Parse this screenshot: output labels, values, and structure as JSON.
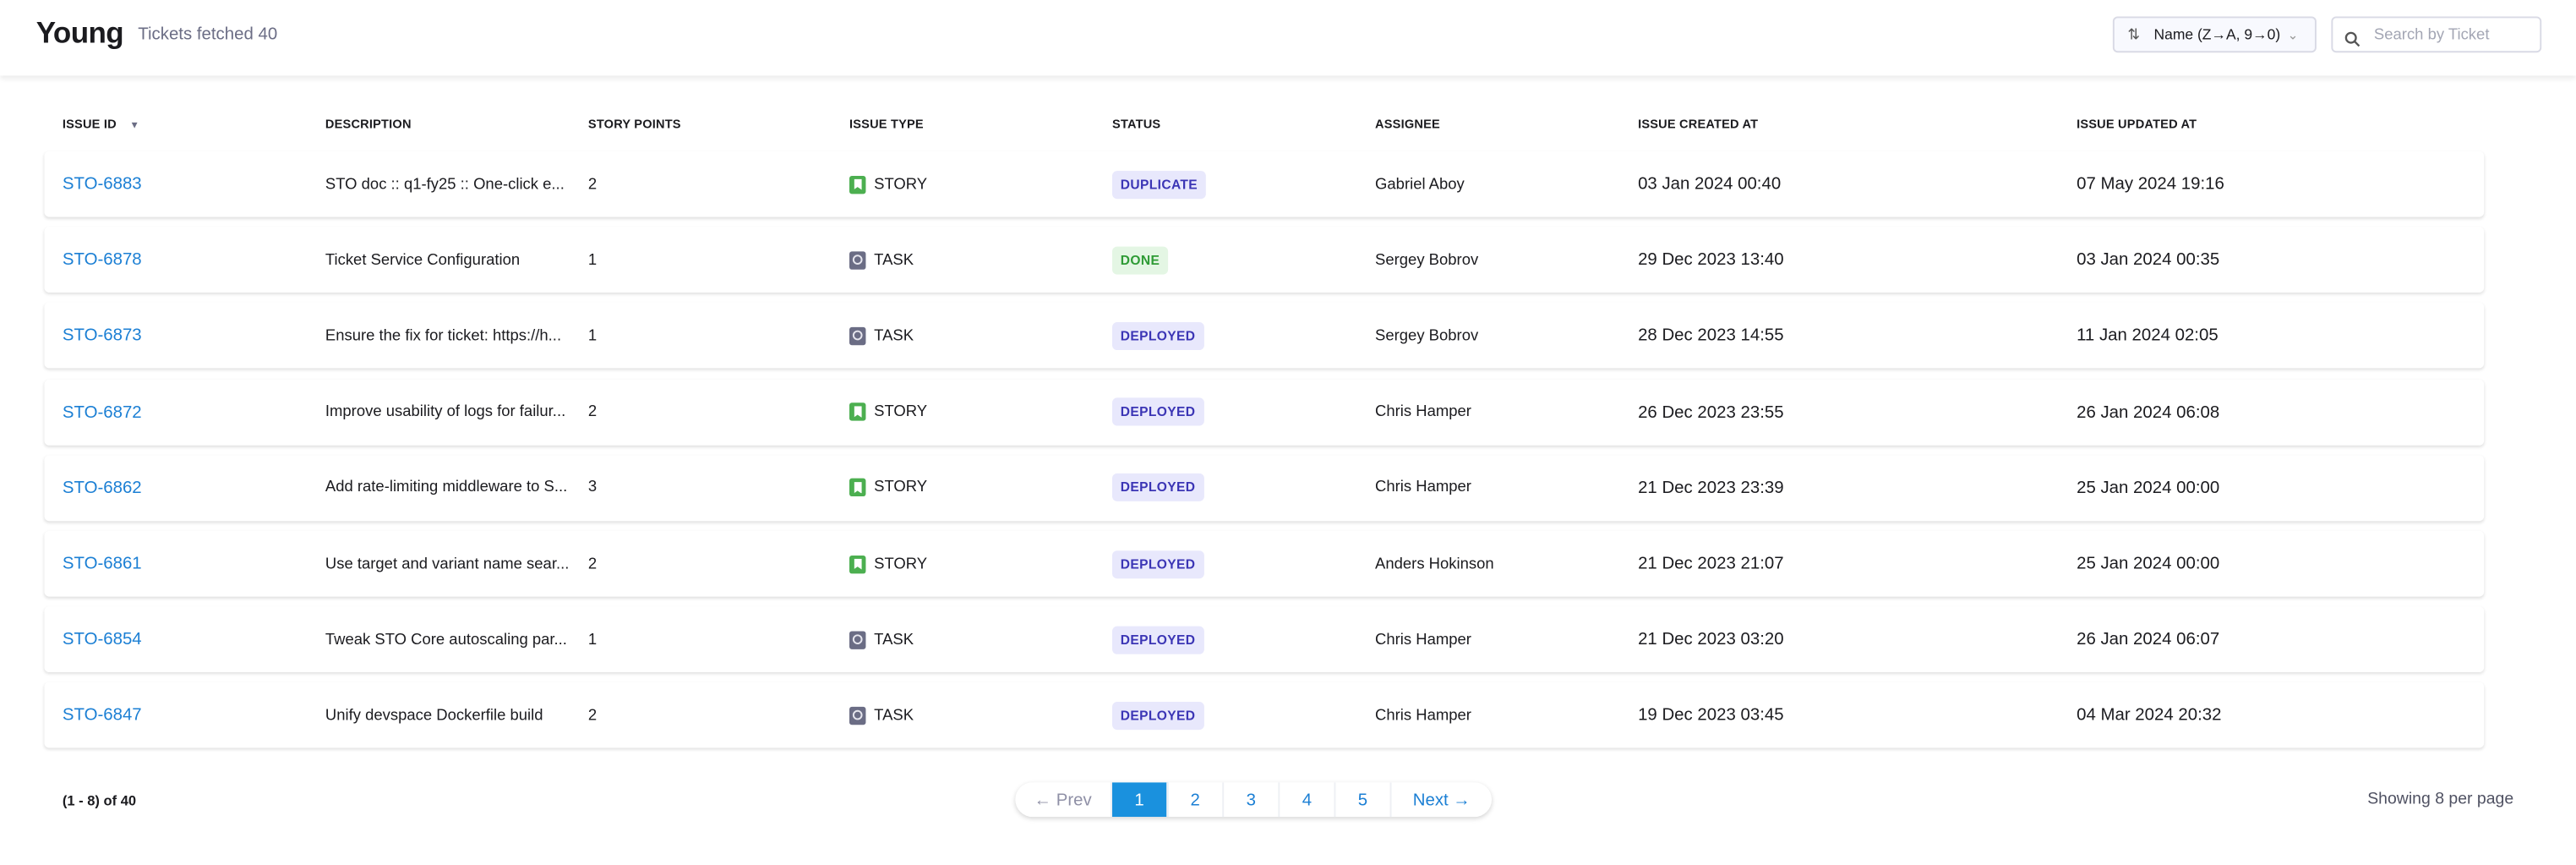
{
  "header": {
    "title": "Young",
    "subtitle": "Tickets fetched 40",
    "sort": {
      "icon": "sort-arrows-icon",
      "value": "Name (Z→A, 9→0)"
    },
    "search": {
      "placeholder": "Search by Ticket",
      "value": ""
    }
  },
  "table": {
    "columns": [
      "ISSUE ID",
      "DESCRIPTION",
      "STORY POINTS",
      "ISSUE TYPE",
      "STATUS",
      "ASSIGNEE",
      "ISSUE CREATED AT",
      "ISSUE UPDATED AT"
    ],
    "sorted_column": "ISSUE ID",
    "rows": [
      {
        "id": "STO-6883",
        "description": "STO doc :: q1-fy25 :: One-click e...",
        "points": "2",
        "type": "STORY",
        "status": "DUPLICATE",
        "assignee": "Gabriel Aboy",
        "created": "03 Jan 2024 00:40",
        "updated": "07 May 2024 19:16"
      },
      {
        "id": "STO-6878",
        "description": "Ticket Service Configuration",
        "points": "1",
        "type": "TASK",
        "status": "DONE",
        "assignee": "Sergey Bobrov",
        "created": "29 Dec 2023 13:40",
        "updated": "03 Jan 2024 00:35"
      },
      {
        "id": "STO-6873",
        "description": "Ensure the fix for ticket: https://h...",
        "points": "1",
        "type": "TASK",
        "status": "DEPLOYED",
        "assignee": "Sergey Bobrov",
        "created": "28 Dec 2023 14:55",
        "updated": "11 Jan 2024 02:05"
      },
      {
        "id": "STO-6872",
        "description": "Improve usability of logs for failur...",
        "points": "2",
        "type": "STORY",
        "status": "DEPLOYED",
        "assignee": "Chris Hamper",
        "created": "26 Dec 2023 23:55",
        "updated": "26 Jan 2024 06:08"
      },
      {
        "id": "STO-6862",
        "description": "Add rate-limiting middleware to S...",
        "points": "3",
        "type": "STORY",
        "status": "DEPLOYED",
        "assignee": "Chris Hamper",
        "created": "21 Dec 2023 23:39",
        "updated": "25 Jan 2024 00:00"
      },
      {
        "id": "STO-6861",
        "description": "Use target and variant name sear...",
        "points": "2",
        "type": "STORY",
        "status": "DEPLOYED",
        "assignee": "Anders Hokinson",
        "created": "21 Dec 2023 21:07",
        "updated": "25 Jan 2024 00:00"
      },
      {
        "id": "STO-6854",
        "description": "Tweak STO Core autoscaling par...",
        "points": "1",
        "type": "TASK",
        "status": "DEPLOYED",
        "assignee": "Chris Hamper",
        "created": "21 Dec 2023 03:20",
        "updated": "26 Jan 2024 06:07"
      },
      {
        "id": "STO-6847",
        "description": "Unify devspace Dockerfile build",
        "points": "2",
        "type": "TASK",
        "status": "DEPLOYED",
        "assignee": "Chris Hamper",
        "created": "19 Dec 2023 03:45",
        "updated": "04 Mar 2024 20:32"
      }
    ]
  },
  "status_colors": {
    "DUPLICATE": {
      "bg": "#e8e8fc",
      "fg": "#3b35b5"
    },
    "DONE": {
      "bg": "#e4f6e4",
      "fg": "#2e9b35"
    },
    "DEPLOYED": {
      "bg": "#e8e8fc",
      "fg": "#3b35b5"
    }
  },
  "type_icons": {
    "STORY": "bookmark-icon",
    "TASK": "task-circle-icon"
  },
  "footer": {
    "range": "(1 - 8) of 40",
    "per_page": "Showing 8 per page",
    "pagination": {
      "prev": "← Prev",
      "pages": [
        "1",
        "2",
        "3",
        "4",
        "5"
      ],
      "current": "1",
      "next": "Next →"
    }
  },
  "colors": {
    "accent": "#1a91de",
    "link": "#1b7fd4"
  }
}
